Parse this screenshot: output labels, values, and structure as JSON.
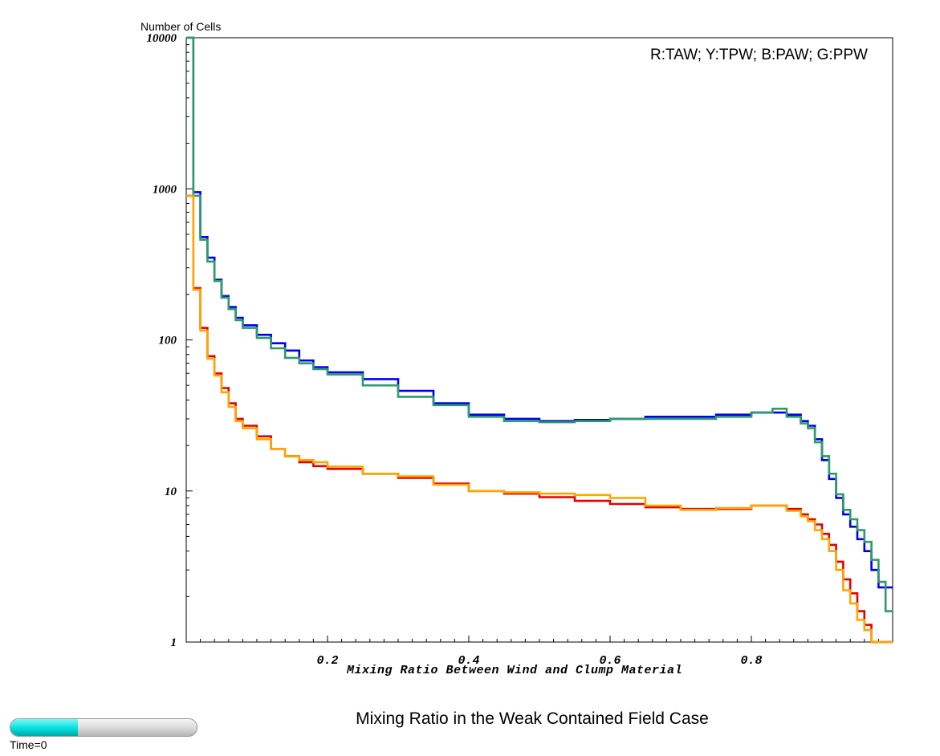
{
  "chart_data": {
    "type": "line",
    "y_axis_title": "Number of Cells",
    "xlabel": "Mixing Ratio Between Wind and Clump Material",
    "legend_text": "R:TAW; Y:TPW; B:PAW; G:PPW",
    "yscale": "log",
    "ylim": [
      1,
      10000
    ],
    "xlim": [
      0,
      1
    ],
    "x_ticks": [
      "0.2",
      "0.4",
      "0.6",
      "0.8"
    ],
    "y_ticks": [
      "1",
      "10",
      "100",
      "1000",
      "10000"
    ],
    "grid": false,
    "legend_placement": "top-right",
    "series": [
      {
        "color": "#0000ee",
        "x": [
          0.0,
          0.01,
          0.02,
          0.03,
          0.04,
          0.05,
          0.06,
          0.07,
          0.08,
          0.1,
          0.12,
          0.14,
          0.16,
          0.18,
          0.2,
          0.25,
          0.3,
          0.35,
          0.4,
          0.45,
          0.5,
          0.55,
          0.6,
          0.65,
          0.7,
          0.75,
          0.8,
          0.85,
          0.87,
          0.88,
          0.89,
          0.9,
          0.91,
          0.92,
          0.93,
          0.94,
          0.95,
          0.96,
          0.97,
          0.98,
          0.99,
          1.0
        ],
        "y": [
          10000,
          950,
          480,
          350,
          250,
          195,
          165,
          140,
          125,
          108,
          95,
          85,
          73,
          66,
          61,
          55,
          46,
          38,
          32,
          30,
          29,
          29.5,
          30,
          31,
          31,
          32,
          33,
          32,
          29,
          27,
          22,
          16,
          12,
          9,
          7,
          5.8,
          4.8,
          4,
          3,
          2.3,
          2.3,
          2.3
        ]
      },
      {
        "color": "#2e9b6a",
        "x": [
          0.0,
          0.01,
          0.02,
          0.03,
          0.04,
          0.05,
          0.06,
          0.07,
          0.08,
          0.1,
          0.12,
          0.14,
          0.16,
          0.18,
          0.2,
          0.25,
          0.3,
          0.35,
          0.4,
          0.45,
          0.5,
          0.55,
          0.6,
          0.65,
          0.7,
          0.75,
          0.8,
          0.83,
          0.85,
          0.87,
          0.88,
          0.89,
          0.9,
          0.91,
          0.92,
          0.93,
          0.94,
          0.95,
          0.96,
          0.97,
          0.98,
          0.99,
          1.0
        ],
        "y": [
          10000,
          900,
          460,
          330,
          245,
          190,
          160,
          135,
          120,
          103,
          88,
          76,
          70,
          64,
          59,
          50,
          42,
          37,
          31,
          29,
          28.5,
          29,
          30,
          30,
          30,
          31,
          33,
          35,
          31,
          28,
          26,
          21,
          17,
          13,
          9.5,
          7.5,
          6.5,
          5.5,
          4.6,
          3.5,
          2.5,
          1.6,
          1.6
        ]
      },
      {
        "color": "#e30000",
        "x": [
          0.0,
          0.01,
          0.02,
          0.03,
          0.04,
          0.05,
          0.06,
          0.07,
          0.08,
          0.1,
          0.12,
          0.14,
          0.16,
          0.18,
          0.2,
          0.25,
          0.3,
          0.35,
          0.4,
          0.45,
          0.5,
          0.55,
          0.6,
          0.65,
          0.7,
          0.75,
          0.8,
          0.85,
          0.87,
          0.88,
          0.89,
          0.9,
          0.91,
          0.92,
          0.93,
          0.94,
          0.95,
          0.96,
          0.97,
          0.98
        ],
        "y": [
          900,
          220,
          120,
          78,
          60,
          48,
          38,
          30,
          27,
          23,
          19,
          17,
          15.5,
          14.6,
          14,
          13,
          12.2,
          11.2,
          10,
          9.6,
          9.1,
          8.6,
          8.2,
          7.8,
          7.6,
          7.6,
          8,
          7.6,
          7,
          6.5,
          6,
          5.2,
          4.4,
          3.4,
          2.6,
          2.1,
          1.6,
          1.3,
          1.0,
          1.0
        ]
      },
      {
        "color": "#ffa500",
        "x": [
          0.0,
          0.01,
          0.02,
          0.03,
          0.04,
          0.05,
          0.06,
          0.07,
          0.08,
          0.1,
          0.12,
          0.14,
          0.16,
          0.18,
          0.2,
          0.25,
          0.3,
          0.35,
          0.4,
          0.45,
          0.5,
          0.55,
          0.6,
          0.65,
          0.7,
          0.75,
          0.8,
          0.85,
          0.87,
          0.88,
          0.89,
          0.9,
          0.91,
          0.92,
          0.93,
          0.94,
          0.95,
          0.96,
          0.97,
          0.98
        ],
        "y": [
          900,
          215,
          115,
          75,
          58,
          45,
          36,
          29,
          26,
          22,
          19,
          17,
          16,
          15.5,
          14.5,
          13,
          12.5,
          11,
          10,
          9.8,
          9.6,
          9.4,
          9,
          8,
          7.5,
          7.7,
          8,
          7.4,
          6.8,
          6.3,
          5.5,
          4.8,
          4,
          3,
          2.2,
          1.8,
          1.4,
          1.2,
          1.0,
          1.0
        ]
      }
    ]
  },
  "footer": {
    "title": "Mixing Ratio in the Weak Contained Field Case",
    "time_label": "Time=0",
    "time_progress": 0.36
  }
}
